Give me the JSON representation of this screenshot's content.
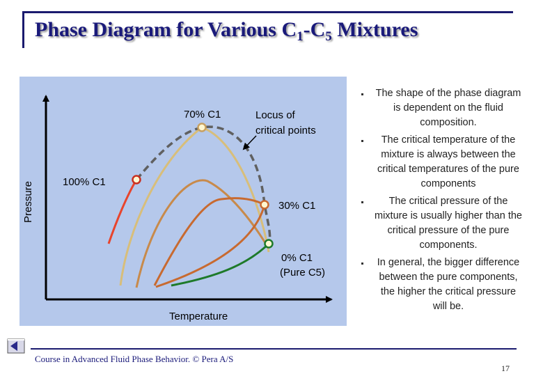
{
  "slide": {
    "title_main": "Phase Diagram for Various C",
    "title_sub1": "1",
    "title_dash": "-C",
    "title_sub2": "5",
    "title_end": " Mixtures",
    "footer": "Course in Advanced Fluid Phase Behavior. © Pera A/S",
    "page_number": "17"
  },
  "diagram": {
    "x_axis_label": "Temperature",
    "y_axis_label": "Pressure",
    "labels": {
      "c1_100": "100% C1",
      "c1_70": "70% C1",
      "c1_30": "30% C1",
      "c1_0_line1": "0% C1",
      "c1_0_line2": "(Pure C5)",
      "locus_line1": "Locus of",
      "locus_line2": "critical points"
    },
    "colors": {
      "background": "#b5c8eb",
      "c1_100": "#e8442c",
      "c1_70": "#d8be7a",
      "c1_50": "#c88a4a",
      "c1_30": "#c86a30",
      "c1_0": "#1e7a2a",
      "locus": "#606060",
      "axis": "#000000"
    }
  },
  "bullets": [
    "The shape of the phase diagram is dependent on the fluid composition.",
    "The critical temperature of the mixture is always between the critical temperatures of the pure components",
    "The critical pressure of the mixture is usually higher than the critical pressure of the pure components.",
    "In general, the bigger difference between the pure components, the higher the critical pressure will be."
  ]
}
